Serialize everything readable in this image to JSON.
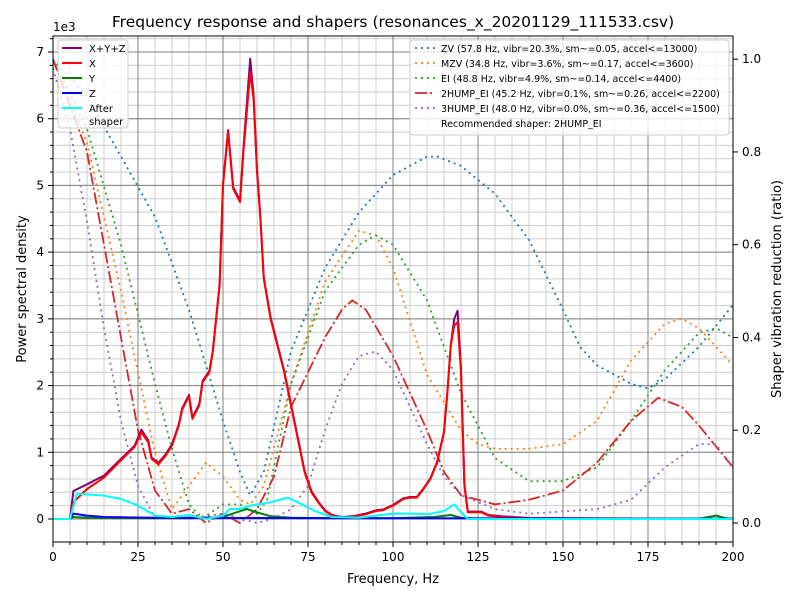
{
  "chart_data": {
    "type": "line",
    "title": "Frequency response and shapers (resonances_x_20201129_111533.csv)",
    "xlabel": "Frequency, Hz",
    "ylabel": "Power spectral density",
    "y_offset_label": "1e3",
    "y2label": "Shaper vibration reduction (ratio)",
    "xlim": [
      0,
      200
    ],
    "ylim": [
      -345,
      7240
    ],
    "y2lim": [
      -0.041,
      1.05
    ],
    "xticks": [
      "0",
      "25",
      "50",
      "75",
      "100",
      "125",
      "150",
      "175",
      "200"
    ],
    "yticks": [
      "0",
      "1",
      "2",
      "3",
      "4",
      "5",
      "6",
      "7"
    ],
    "y2ticks": [
      "0.0",
      "0.2",
      "0.4",
      "0.6",
      "0.8",
      "1.0"
    ],
    "grid": true,
    "legend_psd": {
      "placement": "top-left",
      "entries": [
        "X+Y+Z",
        "X",
        "Y",
        "Z",
        "After\nshaper"
      ]
    },
    "legend_shapers": {
      "placement": "top-right",
      "recommended": "Recommended shaper: 2HUMP_EI"
    },
    "psd_series": [
      {
        "name": "X+Y+Z",
        "color": "#800080",
        "width": 2,
        "x": [
          0,
          5,
          6,
          10,
          15,
          20,
          22,
          24,
          26,
          28,
          29,
          31,
          33,
          35,
          37,
          38,
          40,
          41,
          43,
          44,
          46,
          47,
          49,
          50,
          51.5,
          53,
          55,
          56,
          58,
          59,
          60,
          61,
          62,
          64,
          66,
          68,
          70,
          72,
          74,
          76,
          78,
          80,
          82,
          85,
          88,
          92,
          95,
          97,
          100,
          103,
          105,
          107,
          109,
          111,
          113,
          115,
          116,
          117,
          118,
          119,
          120,
          121,
          122,
          124,
          126,
          128,
          132,
          140,
          200
        ],
        "y": [
          0,
          0,
          420,
          520,
          650,
          900,
          1000,
          1100,
          1340,
          1180,
          920,
          840,
          960,
          1120,
          1420,
          1660,
          1860,
          1520,
          1720,
          2070,
          2220,
          2520,
          3520,
          5020,
          5830,
          4970,
          4780,
          5550,
          6900,
          6350,
          5250,
          4520,
          3620,
          3020,
          2620,
          2220,
          1720,
          1220,
          720,
          420,
          260,
          130,
          60,
          30,
          40,
          80,
          130,
          140,
          210,
          310,
          330,
          330,
          460,
          610,
          860,
          1310,
          1910,
          2610,
          3000,
          3120,
          2250,
          520,
          110,
          110,
          110,
          60,
          40,
          15,
          0
        ]
      },
      {
        "name": "X",
        "color": "#ff0000",
        "width": 2,
        "x": [
          0,
          5,
          6,
          10,
          15,
          20,
          22,
          24,
          26,
          28,
          29,
          31,
          33,
          35,
          37,
          38,
          40,
          41,
          43,
          44,
          46,
          47,
          49,
          50,
          51.5,
          53,
          55,
          56,
          58,
          59,
          60,
          61,
          62,
          64,
          66,
          68,
          70,
          72,
          74,
          76,
          78,
          80,
          82,
          85,
          88,
          92,
          95,
          97,
          100,
          103,
          105,
          107,
          109,
          111,
          113,
          115,
          116,
          117,
          118,
          119,
          120,
          121,
          122,
          124,
          126,
          128,
          132,
          140,
          200
        ],
        "y": [
          0,
          0,
          250,
          450,
          620,
          880,
          980,
          1080,
          1300,
          1150,
          900,
          820,
          940,
          1100,
          1400,
          1640,
          1840,
          1500,
          1700,
          2050,
          2200,
          2500,
          3500,
          5000,
          5800,
          4950,
          4750,
          5500,
          6700,
          6300,
          5200,
          4500,
          3600,
          3000,
          2600,
          2200,
          1700,
          1200,
          700,
          400,
          250,
          120,
          50,
          20,
          30,
          70,
          120,
          130,
          200,
          300,
          320,
          320,
          450,
          600,
          850,
          1300,
          1900,
          2600,
          2900,
          2950,
          2200,
          500,
          100,
          100,
          100,
          50,
          30,
          10,
          0
        ]
      },
      {
        "name": "Y",
        "color": "#008000",
        "width": 2,
        "x": [
          0,
          5,
          6,
          10,
          20,
          40,
          50,
          54,
          57,
          60,
          64,
          70,
          80,
          100,
          112,
          117,
          120,
          125,
          190,
          195,
          198,
          200
        ],
        "y": [
          0,
          0,
          30,
          20,
          15,
          10,
          30,
          100,
          150,
          100,
          40,
          20,
          10,
          10,
          30,
          60,
          20,
          5,
          5,
          50,
          10,
          5
        ]
      },
      {
        "name": "Z",
        "color": "#0000ff",
        "width": 2,
        "x": [
          0,
          5,
          6,
          10,
          15,
          20,
          30,
          60,
          100,
          200
        ],
        "y": [
          0,
          0,
          80,
          50,
          30,
          25,
          20,
          15,
          10,
          5
        ]
      },
      {
        "name": "After\nshaper",
        "color": "#00ffff",
        "width": 2,
        "x": [
          0,
          5,
          7,
          15,
          20,
          25,
          30,
          35,
          40,
          45,
          50,
          52,
          55,
          58,
          64,
          69,
          72,
          77,
          82,
          90,
          95,
          100,
          105,
          110,
          115,
          118,
          120,
          122,
          200
        ],
        "y": [
          0,
          0,
          380,
          350,
          300,
          200,
          50,
          30,
          60,
          0,
          50,
          150,
          150,
          200,
          250,
          320,
          250,
          120,
          30,
          20,
          50,
          80,
          80,
          70,
          120,
          220,
          100,
          0,
          0
        ]
      }
    ],
    "shaper_series": [
      {
        "name": "ZV (57.8 Hz, vibr=20.3%, sm~=0.05, accel<=13000)",
        "color": "#1f77b4",
        "dash": "2,4",
        "x": [
          0,
          10,
          20,
          30,
          40,
          50,
          55,
          58,
          62,
          70,
          80,
          90,
          100,
          110,
          113,
          120,
          130,
          140,
          150,
          155,
          160,
          170,
          175,
          180,
          190,
          200
        ],
        "y": [
          1.0,
          0.92,
          0.79,
          0.66,
          0.46,
          0.22,
          0.11,
          0.06,
          0.11,
          0.37,
          0.55,
          0.67,
          0.75,
          0.79,
          0.79,
          0.77,
          0.71,
          0.61,
          0.46,
          0.38,
          0.34,
          0.3,
          0.29,
          0.31,
          0.38,
          0.47
        ]
      },
      {
        "name": "MZV (34.8 Hz, vibr=3.6%, sm~=0.17, accel<=3600)",
        "color": "#ff7f0e",
        "dash": "2,4",
        "x": [
          0,
          10,
          20,
          30,
          35,
          40,
          45,
          50,
          55,
          58,
          62,
          70,
          80,
          90,
          95,
          100,
          110,
          120,
          125,
          130,
          140,
          150,
          160,
          170,
          180,
          185,
          190,
          200
        ],
        "y": [
          1.0,
          0.82,
          0.5,
          0.15,
          0.03,
          0.08,
          0.13,
          0.1,
          0.05,
          0.04,
          0.08,
          0.3,
          0.52,
          0.63,
          0.62,
          0.55,
          0.32,
          0.2,
          0.17,
          0.16,
          0.16,
          0.17,
          0.22,
          0.35,
          0.43,
          0.44,
          0.42,
          0.34
        ]
      },
      {
        "name": "EI (48.8 Hz, vibr=4.9%, sm~=0.14, accel<=4400)",
        "color": "#2ca02c",
        "dash": "2,4",
        "x": [
          0,
          10,
          20,
          30,
          35,
          40,
          44,
          50,
          55,
          60,
          63,
          70,
          80,
          90,
          95,
          100,
          110,
          120,
          130,
          140,
          145,
          150,
          160,
          170,
          180,
          190,
          195,
          200
        ],
        "y": [
          1.0,
          0.85,
          0.6,
          0.3,
          0.16,
          0.04,
          0.01,
          0.04,
          0.04,
          0.02,
          0.05,
          0.3,
          0.5,
          0.6,
          0.62,
          0.6,
          0.48,
          0.28,
          0.14,
          0.09,
          0.09,
          0.09,
          0.12,
          0.22,
          0.33,
          0.41,
          0.42,
          0.4
        ]
      },
      {
        "name": "2HUMP_EI (45.2 Hz, vibr=0.1%, sm~=0.26, accel<=2200)",
        "color": "#d62728",
        "dash": "12,3,2,3",
        "x": [
          0,
          10,
          20,
          25,
          30,
          35,
          40,
          45,
          50,
          55,
          60,
          65,
          70,
          80,
          85,
          88,
          92,
          100,
          110,
          115,
          120,
          130,
          140,
          150,
          160,
          170,
          178,
          185,
          190,
          200
        ],
        "y": [
          1.0,
          0.8,
          0.4,
          0.2,
          0.07,
          0.02,
          0.03,
          0.0,
          0.02,
          0.0,
          0.03,
          0.1,
          0.25,
          0.4,
          0.46,
          0.48,
          0.46,
          0.36,
          0.2,
          0.11,
          0.06,
          0.04,
          0.05,
          0.07,
          0.13,
          0.22,
          0.27,
          0.25,
          0.21,
          0.12
        ]
      },
      {
        "name": "3HUMP_EI (48.0 Hz, vibr=0.0%, sm~=0.36, accel<=1500)",
        "color": "#9467bd",
        "dash": "2,4",
        "x": [
          0,
          5,
          10,
          15,
          20,
          25,
          30,
          40,
          50,
          60,
          65,
          70,
          75,
          80,
          85,
          90,
          95,
          100,
          110,
          115,
          120,
          130,
          140,
          160,
          170,
          180,
          190,
          195,
          200
        ],
        "y": [
          0.98,
          0.85,
          0.65,
          0.42,
          0.22,
          0.08,
          0.01,
          0.01,
          0.02,
          0.0,
          0.01,
          0.03,
          0.08,
          0.2,
          0.3,
          0.36,
          0.37,
          0.33,
          0.17,
          0.1,
          0.06,
          0.03,
          0.02,
          0.03,
          0.05,
          0.12,
          0.17,
          0.17,
          0.12
        ]
      }
    ]
  }
}
